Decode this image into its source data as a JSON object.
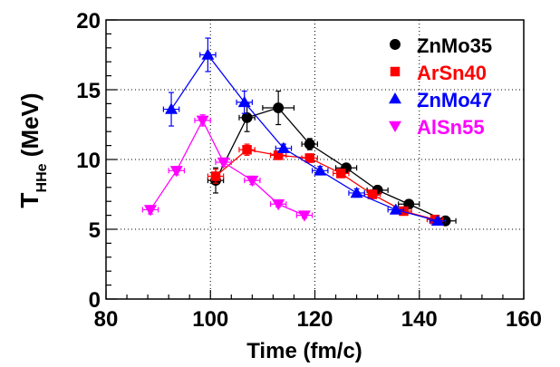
{
  "chart_data": {
    "type": "scatter",
    "xlabel": "Time (fm/c)",
    "ylabel": {
      "main": "T",
      "sub": "HHe",
      "rest": " (MeV)"
    },
    "xlim": [
      80,
      160
    ],
    "ylim": [
      0,
      20
    ],
    "x_ticks": [
      80,
      100,
      120,
      140,
      160
    ],
    "y_ticks": [
      0,
      5,
      10,
      15,
      20
    ],
    "grid": true,
    "legend_position": "top-right",
    "series": [
      {
        "name": "ZnMo35",
        "color": "#000000",
        "marker": "circle",
        "points": [
          {
            "x": 101,
            "y": 8.5,
            "xerr": 1.5,
            "yerr": 0.9
          },
          {
            "x": 107,
            "y": 13.0,
            "xerr": 1.5,
            "yerr": 1.0
          },
          {
            "x": 113,
            "y": 13.7,
            "xerr": 3.0,
            "yerr": 1.2
          },
          {
            "x": 119,
            "y": 11.1,
            "xerr": 1.5,
            "yerr": 0.4
          },
          {
            "x": 126,
            "y": 9.4,
            "xerr": 2.0,
            "yerr": 0.3
          },
          {
            "x": 132,
            "y": 7.8,
            "xerr": 2.0,
            "yerr": 0.3
          },
          {
            "x": 138,
            "y": 6.8,
            "xerr": 2.0,
            "yerr": 0.3
          },
          {
            "x": 145,
            "y": 5.6,
            "xerr": 2.0,
            "yerr": 0.2
          }
        ]
      },
      {
        "name": "ArSn40",
        "color": "#ff0000",
        "marker": "square",
        "points": [
          {
            "x": 101,
            "y": 8.8,
            "xerr": 1.5,
            "yerr": 0.5
          },
          {
            "x": 107,
            "y": 10.7,
            "xerr": 1.5,
            "yerr": 0.4
          },
          {
            "x": 113,
            "y": 10.3,
            "xerr": 1.5,
            "yerr": 0.3
          },
          {
            "x": 119,
            "y": 10.1,
            "xerr": 1.5,
            "yerr": 0.3
          },
          {
            "x": 125,
            "y": 9.0,
            "xerr": 1.5,
            "yerr": 0.3
          },
          {
            "x": 131,
            "y": 7.5,
            "xerr": 1.5,
            "yerr": 0.3
          },
          {
            "x": 137,
            "y": 6.3,
            "xerr": 1.5,
            "yerr": 0.2
          },
          {
            "x": 143,
            "y": 5.7,
            "xerr": 1.5,
            "yerr": 0.2
          }
        ]
      },
      {
        "name": "ZnMo47",
        "color": "#0000ff",
        "marker": "triangle-up",
        "points": [
          {
            "x": 92.5,
            "y": 13.6,
            "xerr": 1.5,
            "yerr": 1.2
          },
          {
            "x": 99.5,
            "y": 17.5,
            "xerr": 1.5,
            "yerr": 1.2
          },
          {
            "x": 106.5,
            "y": 14.1,
            "xerr": 1.5,
            "yerr": 0.8
          },
          {
            "x": 114,
            "y": 10.8,
            "xerr": 1.5,
            "yerr": 0.3
          },
          {
            "x": 121,
            "y": 9.2,
            "xerr": 1.5,
            "yerr": 0.3
          },
          {
            "x": 128,
            "y": 7.6,
            "xerr": 1.5,
            "yerr": 0.3
          },
          {
            "x": 135.5,
            "y": 6.4,
            "xerr": 1.5,
            "yerr": 0.2
          },
          {
            "x": 143.5,
            "y": 5.6,
            "xerr": 1.5,
            "yerr": 0.2
          }
        ]
      },
      {
        "name": "AlSn55",
        "color": "#ff00ff",
        "marker": "triangle-down",
        "points": [
          {
            "x": 88.5,
            "y": 6.4,
            "xerr": 1.5,
            "yerr": 0.3
          },
          {
            "x": 93.5,
            "y": 9.2,
            "xerr": 1.5,
            "yerr": 0.3
          },
          {
            "x": 98.5,
            "y": 12.8,
            "xerr": 1.5,
            "yerr": 0.4
          },
          {
            "x": 102.5,
            "y": 9.8,
            "xerr": 1.5,
            "yerr": 0.3
          },
          {
            "x": 108,
            "y": 8.5,
            "xerr": 1.5,
            "yerr": 0.3
          },
          {
            "x": 113,
            "y": 6.8,
            "xerr": 1.5,
            "yerr": 0.2
          },
          {
            "x": 118,
            "y": 6.0,
            "xerr": 1.5,
            "yerr": 0.2
          }
        ]
      }
    ]
  }
}
